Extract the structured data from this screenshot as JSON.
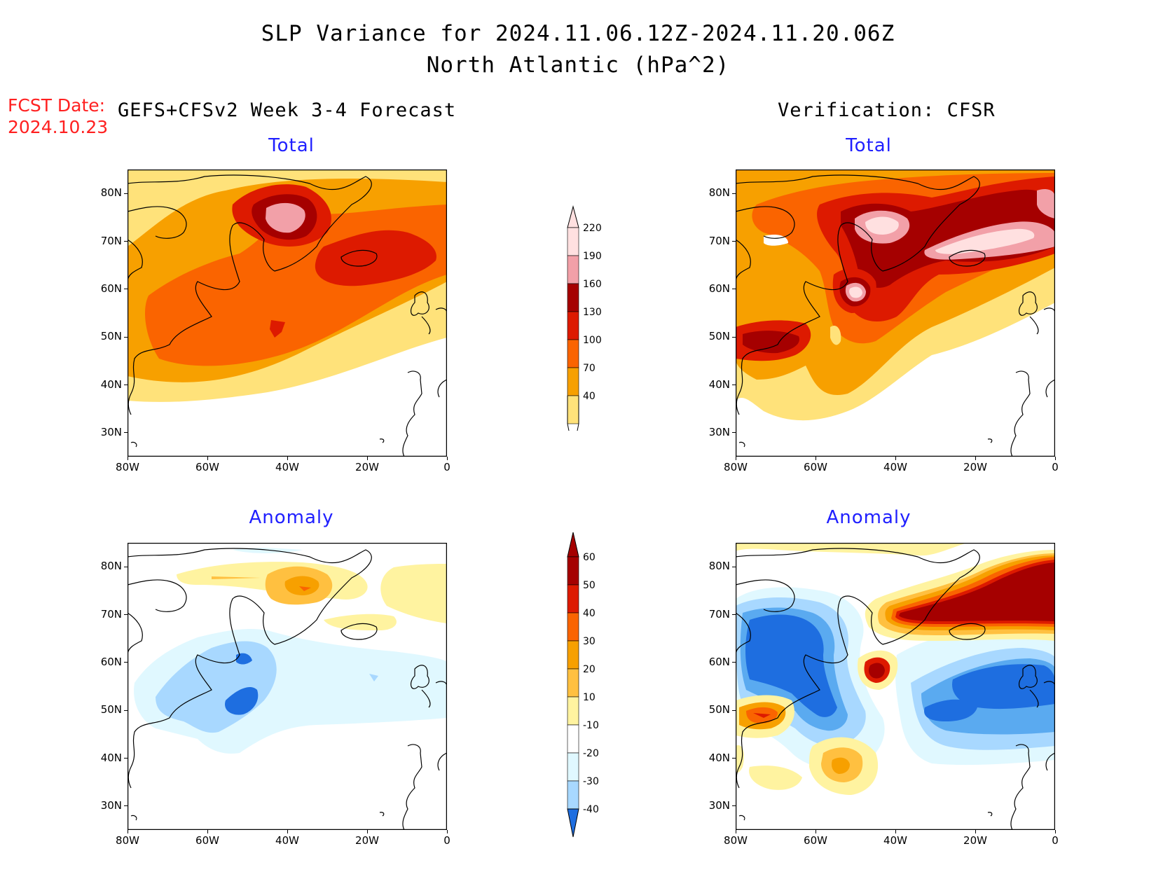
{
  "header": {
    "title_line1": "SLP Variance for 2024.11.06.12Z-2024.11.20.06Z",
    "title_line2": "North Atlantic (hPa^2)",
    "fcst_label": "FCST Date:",
    "fcst_date": "2024.10.23",
    "left_heading": "GEFS+CFSv2 Week 3-4 Forecast",
    "right_heading": "Verification: CFSR"
  },
  "panels": {
    "fcst_total": {
      "title": "Total"
    },
    "obs_total": {
      "title": "Total"
    },
    "fcst_anomaly": {
      "title": "Anomaly"
    },
    "obs_anomaly": {
      "title": "Anomaly"
    }
  },
  "map_axes": {
    "lon_ticks": [
      "80W",
      "60W",
      "40W",
      "20W",
      "0"
    ],
    "lat_ticks": [
      "80N",
      "70N",
      "60N",
      "50N",
      "40N",
      "30N"
    ],
    "lon_range": [
      -80,
      0
    ],
    "lat_range": [
      25,
      85
    ]
  },
  "colorbars": {
    "total": {
      "levels": [
        "220",
        "190",
        "160",
        "130",
        "100",
        "70",
        "40"
      ],
      "colors": [
        "#ffe0e0",
        "#f2a0a8",
        "#a50000",
        "#dd1a00",
        "#fa6400",
        "#f7a000",
        "#ffe27a"
      ]
    },
    "anomaly": {
      "levels": [
        "60",
        "50",
        "40",
        "30",
        "20",
        "10",
        "-10",
        "-20",
        "-30",
        "-40"
      ],
      "colors": [
        "#a50000",
        "#dd1a00",
        "#fa6400",
        "#f7a000",
        "#ffc040",
        "#fff3a0",
        "#ffffff",
        "#e0f8ff",
        "#a8d8ff",
        "#5aaaf0",
        "#1e6ee0"
      ]
    }
  }
}
